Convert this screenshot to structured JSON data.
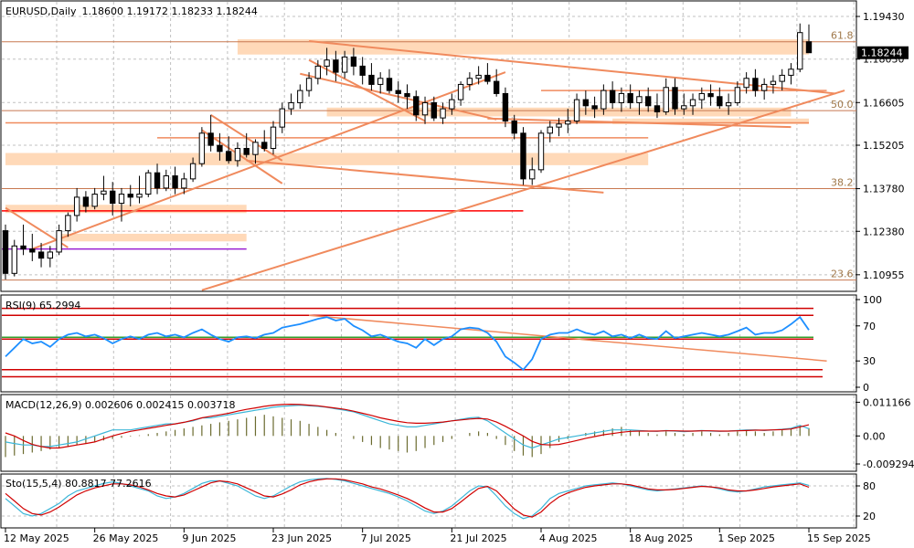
{
  "chart_title": {
    "symbol": "EURUSD,Daily",
    "ohlc": "1.18600 1.19172 1.18233 1.18244"
  },
  "price_tag": "1.18244",
  "colors": {
    "bg": "#ffffff",
    "grid": "#c0c0c0",
    "trend": "#f08a5d",
    "zone": "#ffd9b8",
    "red": "#ff0000",
    "purple": "#9a1fd1",
    "rsi": "#1e8fff",
    "macd_signal": "#d00000",
    "macd_main": "#3cb6d8",
    "sto_main": "#3cb6d8",
    "sto_signal": "#d00000",
    "green": "#33a02c",
    "hist": "#6b6b2f",
    "tag": "#000000"
  },
  "fib_labels": [
    {
      "text": "61.8",
      "price": 1.186
    },
    {
      "text": "50.0",
      "price": 1.1634
    },
    {
      "text": "38.2",
      "price": 1.1378
    },
    {
      "text": "23.6",
      "price": 1.1078
    }
  ],
  "chart_data": [
    {
      "type": "candlestick",
      "title": "EURUSD,Daily",
      "y_ticks": [
        "1.19430",
        "1.18030",
        "1.16605",
        "1.15205",
        "1.13780",
        "1.12380",
        "1.10955"
      ],
      "y_range": [
        1.105,
        1.1985
      ],
      "x_labels": [
        "12 May 2025",
        "26 May 2025",
        "9 Jun 2025",
        "23 Jun 2025",
        "7 Jul 2025",
        "21 Jul 2025",
        "4 Aug 2025",
        "18 Aug 2025",
        "1 Sep 2025",
        "15 Sep 2025"
      ],
      "candles": [
        [
          1.124,
          1.126,
          1.108,
          1.11
        ],
        [
          1.11,
          1.121,
          1.109,
          1.119
        ],
        [
          1.119,
          1.126,
          1.116,
          1.118
        ],
        [
          1.118,
          1.123,
          1.114,
          1.117
        ],
        [
          1.117,
          1.12,
          1.112,
          1.115
        ],
        [
          1.115,
          1.119,
          1.112,
          1.117
        ],
        [
          1.117,
          1.126,
          1.116,
          1.124
        ],
        [
          1.124,
          1.13,
          1.122,
          1.129
        ],
        [
          1.129,
          1.138,
          1.127,
          1.135
        ],
        [
          1.135,
          1.137,
          1.13,
          1.132
        ],
        [
          1.132,
          1.138,
          1.131,
          1.136
        ],
        [
          1.136,
          1.142,
          1.134,
          1.137
        ],
        [
          1.137,
          1.14,
          1.129,
          1.133
        ],
        [
          1.133,
          1.138,
          1.127,
          1.136
        ],
        [
          1.136,
          1.139,
          1.132,
          1.135
        ],
        [
          1.135,
          1.142,
          1.133,
          1.136
        ],
        [
          1.136,
          1.144,
          1.135,
          1.143
        ],
        [
          1.143,
          1.146,
          1.136,
          1.138
        ],
        [
          1.138,
          1.144,
          1.137,
          1.142
        ],
        [
          1.142,
          1.145,
          1.136,
          1.138
        ],
        [
          1.138,
          1.143,
          1.136,
          1.141
        ],
        [
          1.141,
          1.148,
          1.14,
          1.146
        ],
        [
          1.146,
          1.158,
          1.145,
          1.156
        ],
        [
          1.156,
          1.162,
          1.15,
          1.152
        ],
        [
          1.152,
          1.156,
          1.147,
          1.15
        ],
        [
          1.15,
          1.155,
          1.146,
          1.147
        ],
        [
          1.147,
          1.153,
          1.145,
          1.151
        ],
        [
          1.151,
          1.156,
          1.148,
          1.149
        ],
        [
          1.149,
          1.154,
          1.146,
          1.153
        ],
        [
          1.153,
          1.157,
          1.15,
          1.151
        ],
        [
          1.151,
          1.16,
          1.149,
          1.158
        ],
        [
          1.158,
          1.166,
          1.156,
          1.164
        ],
        [
          1.164,
          1.169,
          1.162,
          1.166
        ],
        [
          1.166,
          1.172,
          1.164,
          1.17
        ],
        [
          1.17,
          1.176,
          1.168,
          1.174
        ],
        [
          1.174,
          1.18,
          1.172,
          1.178
        ],
        [
          1.178,
          1.184,
          1.175,
          1.18
        ],
        [
          1.18,
          1.183,
          1.173,
          1.176
        ],
        [
          1.176,
          1.183,
          1.174,
          1.181
        ],
        [
          1.181,
          1.184,
          1.175,
          1.178
        ],
        [
          1.178,
          1.181,
          1.172,
          1.175
        ],
        [
          1.175,
          1.179,
          1.17,
          1.172
        ],
        [
          1.172,
          1.176,
          1.169,
          1.174
        ],
        [
          1.174,
          1.177,
          1.169,
          1.17
        ],
        [
          1.17,
          1.173,
          1.166,
          1.169
        ],
        [
          1.169,
          1.172,
          1.164,
          1.168
        ],
        [
          1.168,
          1.17,
          1.16,
          1.162
        ],
        [
          1.162,
          1.168,
          1.159,
          1.166
        ],
        [
          1.166,
          1.168,
          1.16,
          1.161
        ],
        [
          1.161,
          1.166,
          1.159,
          1.164
        ],
        [
          1.164,
          1.169,
          1.162,
          1.167
        ],
        [
          1.167,
          1.173,
          1.165,
          1.172
        ],
        [
          1.172,
          1.176,
          1.17,
          1.174
        ],
        [
          1.174,
          1.178,
          1.172,
          1.175
        ],
        [
          1.175,
          1.179,
          1.172,
          1.173
        ],
        [
          1.173,
          1.177,
          1.168,
          1.169
        ],
        [
          1.169,
          1.171,
          1.158,
          1.16
        ],
        [
          1.16,
          1.162,
          1.154,
          1.156
        ],
        [
          1.156,
          1.158,
          1.139,
          1.141
        ],
        [
          1.141,
          1.148,
          1.139,
          1.144
        ],
        [
          1.144,
          1.157,
          1.143,
          1.156
        ],
        [
          1.156,
          1.16,
          1.153,
          1.158
        ],
        [
          1.158,
          1.161,
          1.155,
          1.159
        ],
        [
          1.159,
          1.164,
          1.156,
          1.16
        ],
        [
          1.16,
          1.169,
          1.159,
          1.167
        ],
        [
          1.167,
          1.17,
          1.162,
          1.165
        ],
        [
          1.165,
          1.168,
          1.161,
          1.164
        ],
        [
          1.164,
          1.172,
          1.162,
          1.17
        ],
        [
          1.17,
          1.173,
          1.164,
          1.166
        ],
        [
          1.166,
          1.171,
          1.163,
          1.169
        ],
        [
          1.169,
          1.172,
          1.164,
          1.166
        ],
        [
          1.166,
          1.17,
          1.162,
          1.168
        ],
        [
          1.168,
          1.171,
          1.163,
          1.165
        ],
        [
          1.165,
          1.169,
          1.161,
          1.163
        ],
        [
          1.163,
          1.174,
          1.162,
          1.171
        ],
        [
          1.171,
          1.174,
          1.162,
          1.164
        ],
        [
          1.164,
          1.169,
          1.162,
          1.165
        ],
        [
          1.165,
          1.169,
          1.162,
          1.167
        ],
        [
          1.167,
          1.171,
          1.164,
          1.169
        ],
        [
          1.169,
          1.172,
          1.165,
          1.168
        ],
        [
          1.168,
          1.171,
          1.164,
          1.165
        ],
        [
          1.165,
          1.169,
          1.162,
          1.166
        ],
        [
          1.166,
          1.173,
          1.165,
          1.171
        ],
        [
          1.171,
          1.176,
          1.169,
          1.174
        ],
        [
          1.174,
          1.177,
          1.168,
          1.17
        ],
        [
          1.17,
          1.174,
          1.167,
          1.172
        ],
        [
          1.172,
          1.175,
          1.169,
          1.173
        ],
        [
          1.173,
          1.177,
          1.17,
          1.175
        ],
        [
          1.175,
          1.179,
          1.172,
          1.177
        ],
        [
          1.177,
          1.192,
          1.176,
          1.189
        ],
        [
          1.186,
          1.1917,
          1.1823,
          1.1824
        ]
      ],
      "horizontal_lines": [
        {
          "price": 1.186,
          "color": "#c87850"
        },
        {
          "price": 1.1634,
          "color": "#c87850"
        },
        {
          "price": 1.1378,
          "color": "#c87850"
        },
        {
          "price": 1.1078,
          "color": "#c87850"
        },
        {
          "price": 1.1305,
          "color": "#ff0000"
        },
        {
          "price": 1.118,
          "color": "#9a1fd1"
        }
      ]
    },
    {
      "type": "line",
      "title": "RSI(9) 65.2994",
      "ticks": [
        "100",
        "70",
        "30",
        "0"
      ],
      "y_range": [
        0,
        100
      ],
      "levels": [
        {
          "value": 90,
          "color": "#d00000"
        },
        {
          "value": 82,
          "color": "#d00000"
        },
        {
          "value": 57,
          "color": "#33a02c"
        },
        {
          "value": 55,
          "color": "#d00000"
        },
        {
          "value": 20,
          "color": "#d00000"
        },
        {
          "value": 12,
          "color": "#d00000"
        }
      ],
      "values": [
        35,
        45,
        55,
        50,
        52,
        46,
        55,
        60,
        62,
        58,
        60,
        56,
        50,
        55,
        58,
        55,
        60,
        62,
        58,
        60,
        57,
        62,
        66,
        60,
        55,
        52,
        57,
        58,
        56,
        60,
        62,
        68,
        70,
        72,
        75,
        78,
        80,
        76,
        78,
        70,
        65,
        58,
        60,
        56,
        52,
        50,
        45,
        55,
        48,
        55,
        58,
        66,
        68,
        67,
        62,
        52,
        35,
        28,
        20,
        32,
        55,
        60,
        62,
        62,
        66,
        62,
        60,
        64,
        58,
        60,
        56,
        60,
        56,
        55,
        64,
        56,
        58,
        60,
        62,
        60,
        58,
        60,
        64,
        68,
        60,
        62,
        62,
        65,
        72,
        80,
        65.3
      ]
    },
    {
      "type": "histogram+line",
      "title": "MACD(12,26,9) 0.002606 0.002415 0.003718",
      "ticks": [
        "0.011166",
        "0.00",
        "-0.009294"
      ],
      "y_range": [
        -0.0105,
        0.0125
      ],
      "histogram": [
        -0.007,
        -0.0065,
        -0.006,
        -0.0055,
        -0.005,
        -0.0045,
        -0.004,
        -0.0035,
        -0.003,
        -0.0025,
        -0.002,
        -0.0015,
        -0.001,
        -0.0006,
        -0.0002,
        0.0002,
        0.0006,
        0.001,
        0.0015,
        0.002,
        0.0025,
        0.003,
        0.0035,
        0.004,
        0.0045,
        0.005,
        0.0055,
        0.006,
        0.0065,
        0.007,
        0.0065,
        0.006,
        0.0055,
        0.005,
        0.004,
        0.003,
        0.002,
        0.001,
        0,
        -0.001,
        -0.002,
        -0.003,
        -0.004,
        -0.0045,
        -0.005,
        -0.0055,
        -0.005,
        -0.004,
        -0.003,
        -0.002,
        -0.001,
        0,
        0.001,
        0.0015,
        0.001,
        -0.001,
        -0.003,
        -0.005,
        -0.0065,
        -0.007,
        -0.006,
        -0.004,
        -0.002,
        -0.001,
        0,
        0.001,
        0.0015,
        0.002,
        0.0025,
        0.003,
        0.002,
        0.0015,
        0.001,
        0.0005,
        0.0015,
        0.001,
        0.0005,
        0.001,
        0.0015,
        0.001,
        0.0005,
        0.001,
        0.0015,
        0.002,
        0.0015,
        0.001,
        0.0015,
        0.002,
        0.0025,
        0.0035,
        0.0026
      ],
      "main": [
        -0.002,
        -0.0025,
        -0.003,
        -0.003,
        -0.0035,
        -0.0035,
        -0.003,
        -0.0025,
        -0.002,
        -0.001,
        0,
        0.001,
        0.002,
        0.002,
        0.002,
        0.0025,
        0.003,
        0.0035,
        0.004,
        0.004,
        0.0045,
        0.005,
        0.006,
        0.006,
        0.0065,
        0.007,
        0.0075,
        0.008,
        0.0085,
        0.009,
        0.0095,
        0.0098,
        0.01,
        0.0102,
        0.01,
        0.0098,
        0.0095,
        0.009,
        0.0085,
        0.008,
        0.007,
        0.006,
        0.005,
        0.004,
        0.0035,
        0.003,
        0.003,
        0.0035,
        0.004,
        0.0045,
        0.005,
        0.0055,
        0.006,
        0.0062,
        0.005,
        0.003,
        0.001,
        -0.001,
        -0.003,
        -0.004,
        -0.003,
        -0.002,
        -0.001,
        -0.0005,
        0,
        0.0005,
        0.001,
        0.0015,
        0.002,
        0.002,
        0.002,
        0.0018,
        0.0016,
        0.0015,
        0.0018,
        0.0016,
        0.0014,
        0.0016,
        0.0018,
        0.0016,
        0.0015,
        0.0016,
        0.0018,
        0.002,
        0.002,
        0.0018,
        0.002,
        0.0022,
        0.0025,
        0.0035,
        0.0024
      ],
      "signal": [
        0.001,
        0,
        -0.0015,
        -0.0028,
        -0.0035,
        -0.004,
        -0.004,
        -0.0035,
        -0.003,
        -0.0025,
        -0.002,
        -0.001,
        0,
        0.0008,
        0.0015,
        0.002,
        0.0025,
        0.003,
        0.0035,
        0.004,
        0.0045,
        0.0052,
        0.006,
        0.0065,
        0.007,
        0.0075,
        0.0082,
        0.0088,
        0.0093,
        0.0098,
        0.0102,
        0.0104,
        0.0105,
        0.0104,
        0.0102,
        0.01,
        0.0096,
        0.0092,
        0.0088,
        0.0082,
        0.0075,
        0.0068,
        0.006,
        0.0054,
        0.0048,
        0.0044,
        0.0042,
        0.0042,
        0.0044,
        0.0046,
        0.005,
        0.0053,
        0.0056,
        0.0058,
        0.0056,
        0.0046,
        0.0032,
        0.0016,
        0,
        -0.0018,
        -0.0028,
        -0.003,
        -0.0028,
        -0.0022,
        -0.0015,
        -0.0008,
        -0.0002,
        0.0004,
        0.0008,
        0.0012,
        0.0015,
        0.0016,
        0.0016,
        0.0016,
        0.0017,
        0.0017,
        0.0016,
        0.0016,
        0.0017,
        0.0017,
        0.0016,
        0.0016,
        0.0017,
        0.0018,
        0.0019,
        0.0019,
        0.002,
        0.0021,
        0.0023,
        0.003,
        0.0037
      ]
    },
    {
      "type": "line",
      "title": "Sto(15,5,4) 80.8817 77.2616",
      "ticks": [
        "80",
        "20"
      ],
      "y_range": [
        0,
        100
      ],
      "main": [
        55,
        40,
        25,
        20,
        25,
        35,
        45,
        60,
        70,
        75,
        80,
        85,
        88,
        85,
        80,
        75,
        70,
        60,
        55,
        58,
        65,
        75,
        85,
        90,
        90,
        85,
        80,
        70,
        60,
        55,
        60,
        70,
        80,
        88,
        92,
        94,
        95,
        93,
        90,
        85,
        80,
        75,
        70,
        65,
        58,
        50,
        40,
        30,
        25,
        30,
        40,
        55,
        70,
        80,
        78,
        60,
        40,
        25,
        15,
        20,
        35,
        55,
        65,
        70,
        75,
        80,
        82,
        84,
        86,
        84,
        80,
        76,
        72,
        70,
        72,
        74,
        76,
        78,
        80,
        78,
        74,
        70,
        68,
        70,
        74,
        78,
        80,
        82,
        84,
        86,
        80.9
      ],
      "signal": [
        65,
        50,
        35,
        25,
        22,
        28,
        38,
        50,
        62,
        70,
        76,
        80,
        84,
        84,
        82,
        78,
        72,
        65,
        60,
        58,
        62,
        70,
        78,
        86,
        90,
        88,
        84,
        76,
        68,
        60,
        58,
        64,
        72,
        82,
        88,
        92,
        94,
        94,
        92,
        88,
        84,
        78,
        74,
        68,
        62,
        55,
        46,
        36,
        28,
        28,
        35,
        48,
        62,
        75,
        79,
        70,
        52,
        34,
        22,
        18,
        28,
        45,
        58,
        66,
        72,
        77,
        80,
        82,
        84,
        84,
        82,
        78,
        74,
        72,
        72,
        73,
        75,
        77,
        79,
        78,
        76,
        72,
        70,
        70,
        72,
        75,
        78,
        80,
        82,
        84,
        77.3
      ]
    }
  ]
}
